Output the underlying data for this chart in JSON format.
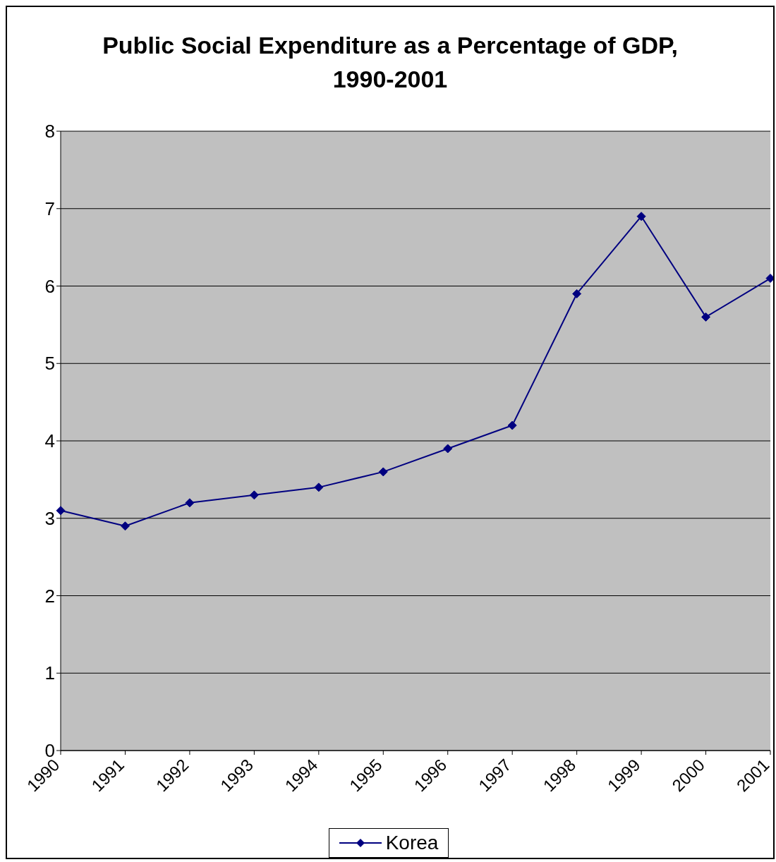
{
  "chart_data": {
    "type": "line",
    "title": "Public Social Expenditure as a Percentage of GDP, 1990-2001",
    "categories": [
      "1990",
      "1991",
      "1992",
      "1993",
      "1994",
      "1995",
      "1996",
      "1997",
      "1998",
      "1999",
      "2000",
      "2001"
    ],
    "series": [
      {
        "name": "Korea",
        "color": "#000080",
        "values": [
          3.1,
          2.9,
          3.2,
          3.3,
          3.4,
          3.6,
          3.9,
          4.2,
          5.9,
          6.9,
          5.6,
          6.1
        ]
      }
    ],
    "ylim": [
      0,
      8
    ],
    "yticks": [
      0,
      1,
      2,
      3,
      4,
      5,
      6,
      7,
      8
    ],
    "grid": "y",
    "legend": "bottom",
    "marker": "diamond"
  }
}
